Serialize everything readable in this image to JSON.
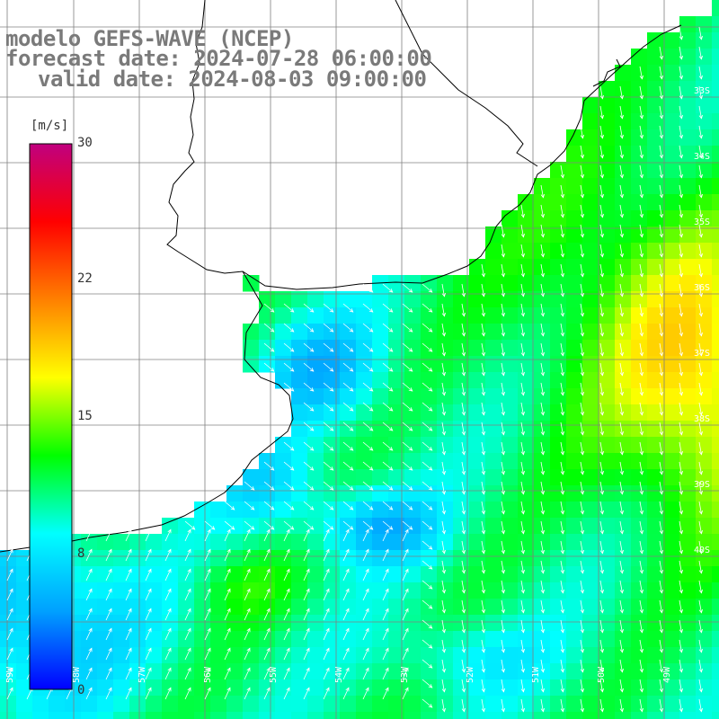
{
  "title": {
    "line1": "modelo GEFS-WAVE (NCEP)",
    "line2": "forecast date: 2024-07-28 06:00:00",
    "line3": "valid date: 2024-08-03 09:00:00"
  },
  "colorbar": {
    "unit": "[m/s]",
    "min": 0,
    "max": 30,
    "ticks": [
      {
        "label": "30",
        "value": 30
      },
      {
        "label": "22",
        "value": 22
      },
      {
        "label": "15",
        "value": 15
      },
      {
        "label": "8",
        "value": 8
      },
      {
        "label": "0",
        "value": 0
      }
    ],
    "stops": [
      "#0000ff",
      "#00a0ff",
      "#00ffff",
      "#00ff00",
      "#ffff00",
      "#ff8000",
      "#ff0000",
      "#c0007f"
    ]
  },
  "map": {
    "lat_labels": [
      "33S",
      "34S",
      "35S",
      "36S",
      "37S",
      "38S",
      "39S",
      "40S"
    ],
    "lon_labels": [
      "59W",
      "58W",
      "57W",
      "56W",
      "55W",
      "54W",
      "53W",
      "52W",
      "51W",
      "50W",
      "49W"
    ],
    "land_color": "#ffffff",
    "grid_color": "#808080",
    "coast_color": "#000000",
    "arrow_color": "#ffffff"
  }
}
